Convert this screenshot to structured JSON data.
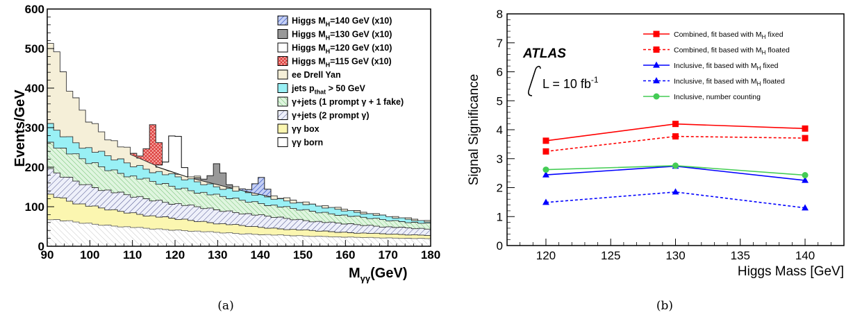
{
  "chart_data": [
    {
      "type": "area",
      "panel_label": "(a)",
      "xlabel": "M",
      "xlabel_sub": "γγ",
      "xlabel_unit": "(GeV)",
      "ylabel": "Events/GeV",
      "xlim": [
        90,
        180
      ],
      "ylim": [
        0,
        600
      ],
      "x_ticks": [
        "90",
        "100",
        "110",
        "120",
        "130",
        "140",
        "150",
        "160",
        "170",
        "180"
      ],
      "y_ticks": [
        "0",
        "100",
        "200",
        "300",
        "400",
        "500",
        "600"
      ],
      "legend_position": "top-right",
      "legend": [
        {
          "text": "Higgs M",
          "sub": "H",
          "suffix": "=140 GeV (x10)",
          "fill": "#3355cc",
          "pattern": "hatch-blue"
        },
        {
          "text": "Higgs M",
          "sub": "H",
          "suffix": "=130 GeV (x10)",
          "fill": "#999999",
          "pattern": "solid"
        },
        {
          "text": "Higgs M",
          "sub": "H",
          "suffix": "=120 GeV (x10)",
          "fill": "#ffffff",
          "pattern": "solid"
        },
        {
          "text": "Higgs M",
          "sub": "H",
          "suffix": "=115 GeV (x10)",
          "fill": "#e84a4a",
          "pattern": "cross-red"
        },
        {
          "text": "ee Drell Yan",
          "sub": "",
          "suffix": "",
          "fill": "#f5efd8",
          "pattern": "solid"
        },
        {
          "text": "jets p",
          "sub": "that",
          "suffix": " > 50 GeV",
          "fill": "#99f0f5",
          "pattern": "solid"
        },
        {
          "text": "γ+jets (1 prompt γ + 1 fake)",
          "sub": "",
          "suffix": "",
          "fill": "#cdeecd",
          "pattern": "hatch-green"
        },
        {
          "text": "γ+jets (2 prompt γ)",
          "sub": "",
          "suffix": "",
          "fill": "#e2e4f4",
          "pattern": "hatch-navy"
        },
        {
          "text": "γγ box",
          "sub": "",
          "suffix": "",
          "fill": "#fbf6b0",
          "pattern": "solid"
        },
        {
          "text": "γγ born",
          "sub": "",
          "suffix": "",
          "fill": "#ffffff",
          "pattern": "solid"
        }
      ],
      "x": [
        90,
        96,
        100,
        105,
        110,
        115,
        120,
        125,
        130,
        135,
        140,
        145,
        150,
        155,
        160,
        165,
        170,
        175,
        180
      ],
      "stack_totals": [
        {
          "name": "γγ born",
          "values": [
            70,
            62,
            57,
            52,
            48,
            44,
            41,
            38,
            35,
            32,
            30,
            28,
            26,
            25,
            23,
            22,
            21,
            20,
            19
          ]
        },
        {
          "name": "γγ box",
          "values": [
            135,
            112,
            102,
            92,
            84,
            76,
            70,
            64,
            58,
            53,
            48,
            44,
            41,
            38,
            35,
            33,
            31,
            29,
            28
          ]
        },
        {
          "name": "γ+jets (2 prompt γ)",
          "values": [
            195,
            168,
            153,
            139,
            127,
            117,
            108,
            100,
            92,
            85,
            78,
            72,
            66,
            61,
            57,
            53,
            49,
            46,
            43
          ]
        },
        {
          "name": "γ+jets (1 prompt γ + 1 fake)",
          "values": [
            270,
            232,
            212,
            193,
            177,
            163,
            150,
            139,
            128,
            118,
            109,
            100,
            92,
            85,
            78,
            72,
            66,
            61,
            57
          ]
        },
        {
          "name": "jets p_that > 50 GeV",
          "values": [
            310,
            268,
            246,
            225,
            207,
            191,
            177,
            164,
            151,
            140,
            129,
            118,
            108,
            99,
            91,
            83,
            75,
            68,
            61
          ]
        },
        {
          "name": "ee Drell Yan",
          "values": [
            540,
            380,
            318,
            270,
            236,
            210,
            190,
            174,
            160,
            147,
            135,
            123,
            112,
            102,
            93,
            85,
            77,
            70,
            63
          ]
        }
      ],
      "higgs_peaks": [
        {
          "mass": 115,
          "peak": 310
        },
        {
          "mass": 120,
          "peak": 300
        },
        {
          "mass": 130,
          "peak": 210
        },
        {
          "mass": 140,
          "peak": 175
        }
      ]
    },
    {
      "type": "line",
      "panel_label": "(b)",
      "xlabel": "Higgs Mass [GeV]",
      "ylabel": "Signal Significance",
      "xlim": [
        117,
        143
      ],
      "ylim": [
        0,
        8
      ],
      "x_ticks": [
        "120",
        "125",
        "130",
        "135",
        "140"
      ],
      "y_ticks": [
        "0",
        "1",
        "2",
        "3",
        "4",
        "5",
        "6",
        "7",
        "8"
      ],
      "x": [
        120,
        130,
        140
      ],
      "legend_position": "top-right",
      "atlas_label": "ATLAS",
      "lumi_text": "L = 10 fb",
      "lumi_sup": "-1",
      "series": [
        {
          "name": "Combined, fit based with M",
          "sub": "H",
          "suffix": " fixed",
          "values": [
            3.62,
            4.2,
            4.04
          ],
          "color": "#ff0000",
          "dash": false,
          "marker": "square"
        },
        {
          "name": "Combined, fit based with M",
          "sub": "H",
          "suffix": " floated",
          "values": [
            3.25,
            3.77,
            3.71
          ],
          "color": "#ff0000",
          "dash": true,
          "marker": "square"
        },
        {
          "name": "Inclusive, fit based with M",
          "sub": "H",
          "suffix": " fixed",
          "values": [
            2.44,
            2.74,
            2.25
          ],
          "color": "#0000ff",
          "dash": false,
          "marker": "triangle"
        },
        {
          "name": "Inclusive, fit based with M",
          "sub": "H",
          "suffix": " floated",
          "values": [
            1.49,
            1.85,
            1.3
          ],
          "color": "#0000ff",
          "dash": true,
          "marker": "triangle"
        },
        {
          "name": "Inclusive, number counting",
          "sub": "",
          "suffix": "",
          "values": [
            2.62,
            2.76,
            2.43
          ],
          "color": "#44cc55",
          "dash": false,
          "marker": "circle"
        }
      ]
    }
  ]
}
